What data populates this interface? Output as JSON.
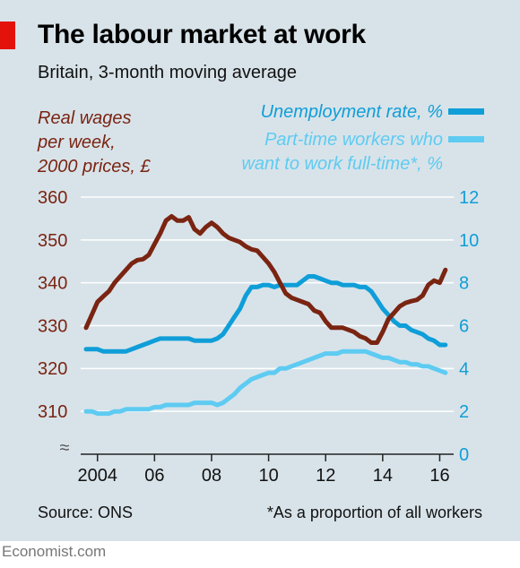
{
  "header": {
    "title": "The labour market at work",
    "subtitle": "Britain, 3-month moving average"
  },
  "footer": {
    "source": "Source: ONS",
    "footnote": "*As a proportion of all workers",
    "brand": "Economist.com"
  },
  "colors": {
    "wages": "#7a2412",
    "unemployment": "#0f9ed8",
    "parttime": "#5ecbf2",
    "panel": "#d8e3e9",
    "accent": "#e3120b"
  },
  "chart_data": {
    "type": "line",
    "grid": "horizontal",
    "x_ticks": [
      "2004",
      "06",
      "08",
      "10",
      "12",
      "14",
      "16"
    ],
    "x_tick_values": [
      2004,
      2006,
      2008,
      2010,
      2012,
      2014,
      2016
    ],
    "xlim": [
      2003.6,
      2016.3
    ],
    "left_axis": {
      "label": [
        "Real wages",
        "per week,",
        "2000 prices, £"
      ],
      "ticks": [
        "360",
        "350",
        "340",
        "330",
        "320",
        "310"
      ],
      "tick_values": [
        360,
        350,
        340,
        330,
        320,
        310
      ],
      "ylim": [
        305,
        360
      ],
      "break_symbol": "≈"
    },
    "right_axis": {
      "ticks": [
        "12",
        "10",
        "8",
        "6",
        "4",
        "2",
        "0"
      ],
      "tick_values": [
        12,
        10,
        8,
        6,
        4,
        2,
        0
      ],
      "ylim": [
        0,
        12
      ]
    },
    "series": [
      {
        "name": "Real wages per week, 2000 prices, £",
        "axis": "left",
        "color": "#7a2412",
        "x": [
          2003.6,
          2003.8,
          2004.0,
          2004.2,
          2004.4,
          2004.6,
          2004.8,
          2005.0,
          2005.2,
          2005.4,
          2005.6,
          2005.8,
          2006.0,
          2006.2,
          2006.4,
          2006.6,
          2006.8,
          2007.0,
          2007.2,
          2007.4,
          2007.6,
          2007.8,
          2008.0,
          2008.2,
          2008.4,
          2008.6,
          2008.8,
          2009.0,
          2009.2,
          2009.4,
          2009.6,
          2009.8,
          2010.0,
          2010.2,
          2010.4,
          2010.6,
          2010.8,
          2011.0,
          2011.2,
          2011.4,
          2011.6,
          2011.8,
          2012.0,
          2012.2,
          2012.4,
          2012.6,
          2012.8,
          2013.0,
          2013.2,
          2013.4,
          2013.6,
          2013.8,
          2014.0,
          2014.2,
          2014.4,
          2014.6,
          2014.8,
          2015.0,
          2015.2,
          2015.4,
          2015.6,
          2015.8,
          2016.0,
          2016.2
        ],
        "values": [
          329.5,
          332.5,
          335.5,
          336.8,
          338.0,
          340.0,
          341.5,
          343.0,
          344.5,
          345.3,
          345.5,
          346.5,
          349.0,
          351.5,
          354.5,
          355.5,
          354.5,
          354.5,
          355.3,
          352.5,
          351.5,
          353.0,
          354.0,
          353.0,
          351.5,
          350.5,
          350.0,
          349.5,
          348.5,
          347.8,
          347.5,
          346.0,
          344.5,
          342.5,
          340.0,
          337.5,
          336.5,
          336.0,
          335.5,
          335.0,
          333.5,
          333.0,
          331.0,
          329.5,
          329.5,
          329.5,
          329.0,
          328.5,
          327.5,
          327.0,
          326.0,
          326.0,
          328.5,
          331.5,
          333.0,
          334.5,
          335.3,
          335.7,
          336.0,
          337.0,
          339.5,
          340.5,
          340.0,
          343.0
        ]
      },
      {
        "name": "Unemployment rate, %",
        "axis": "right",
        "color": "#0f9ed8",
        "x": [
          2003.6,
          2003.8,
          2004.0,
          2004.2,
          2004.4,
          2004.6,
          2004.8,
          2005.0,
          2005.2,
          2005.4,
          2005.6,
          2005.8,
          2006.0,
          2006.2,
          2006.4,
          2006.6,
          2006.8,
          2007.0,
          2007.2,
          2007.4,
          2007.6,
          2007.8,
          2008.0,
          2008.2,
          2008.4,
          2008.6,
          2008.8,
          2009.0,
          2009.2,
          2009.4,
          2009.6,
          2009.8,
          2010.0,
          2010.2,
          2010.4,
          2010.6,
          2010.8,
          2011.0,
          2011.2,
          2011.4,
          2011.6,
          2011.8,
          2012.0,
          2012.2,
          2012.4,
          2012.6,
          2012.8,
          2013.0,
          2013.2,
          2013.4,
          2013.6,
          2013.8,
          2014.0,
          2014.2,
          2014.4,
          2014.6,
          2014.8,
          2015.0,
          2015.2,
          2015.4,
          2015.6,
          2015.8,
          2016.0,
          2016.2
        ],
        "values": [
          4.9,
          4.9,
          4.9,
          4.8,
          4.8,
          4.8,
          4.8,
          4.8,
          4.9,
          5.0,
          5.1,
          5.2,
          5.3,
          5.4,
          5.4,
          5.4,
          5.4,
          5.4,
          5.4,
          5.3,
          5.3,
          5.3,
          5.3,
          5.4,
          5.6,
          6.0,
          6.4,
          6.8,
          7.4,
          7.8,
          7.8,
          7.9,
          7.9,
          7.8,
          7.9,
          7.9,
          7.9,
          7.9,
          8.1,
          8.3,
          8.3,
          8.2,
          8.1,
          8.0,
          8.0,
          7.9,
          7.9,
          7.9,
          7.8,
          7.8,
          7.6,
          7.2,
          6.8,
          6.5,
          6.2,
          6.0,
          6.0,
          5.8,
          5.7,
          5.6,
          5.4,
          5.3,
          5.1,
          5.1
        ]
      },
      {
        "name": "Part-time workers who want to work full-time*, %",
        "axis": "right",
        "color": "#5ecbf2",
        "x": [
          2003.6,
          2003.8,
          2004.0,
          2004.2,
          2004.4,
          2004.6,
          2004.8,
          2005.0,
          2005.2,
          2005.4,
          2005.6,
          2005.8,
          2006.0,
          2006.2,
          2006.4,
          2006.6,
          2006.8,
          2007.0,
          2007.2,
          2007.4,
          2007.6,
          2007.8,
          2008.0,
          2008.2,
          2008.4,
          2008.6,
          2008.8,
          2009.0,
          2009.2,
          2009.4,
          2009.6,
          2009.8,
          2010.0,
          2010.2,
          2010.4,
          2010.6,
          2010.8,
          2011.0,
          2011.2,
          2011.4,
          2011.6,
          2011.8,
          2012.0,
          2012.2,
          2012.4,
          2012.6,
          2012.8,
          2013.0,
          2013.2,
          2013.4,
          2013.6,
          2013.8,
          2014.0,
          2014.2,
          2014.4,
          2014.6,
          2014.8,
          2015.0,
          2015.2,
          2015.4,
          2015.6,
          2015.8,
          2016.0,
          2016.2
        ],
        "values": [
          2.0,
          2.0,
          1.9,
          1.9,
          1.9,
          2.0,
          2.0,
          2.1,
          2.1,
          2.1,
          2.1,
          2.1,
          2.2,
          2.2,
          2.3,
          2.3,
          2.3,
          2.3,
          2.3,
          2.4,
          2.4,
          2.4,
          2.4,
          2.3,
          2.4,
          2.6,
          2.8,
          3.1,
          3.3,
          3.5,
          3.6,
          3.7,
          3.8,
          3.8,
          4.0,
          4.0,
          4.1,
          4.2,
          4.3,
          4.4,
          4.5,
          4.6,
          4.7,
          4.7,
          4.7,
          4.8,
          4.8,
          4.8,
          4.8,
          4.8,
          4.7,
          4.6,
          4.5,
          4.5,
          4.4,
          4.3,
          4.3,
          4.2,
          4.2,
          4.1,
          4.1,
          4.0,
          3.9,
          3.8
        ]
      }
    ],
    "legend": [
      {
        "label": [
          "Unemployment rate, %"
        ],
        "color": "#0f9ed8"
      },
      {
        "label": [
          "Part-time workers who",
          "want to work full-time*, %"
        ],
        "color": "#5ecbf2"
      }
    ]
  }
}
